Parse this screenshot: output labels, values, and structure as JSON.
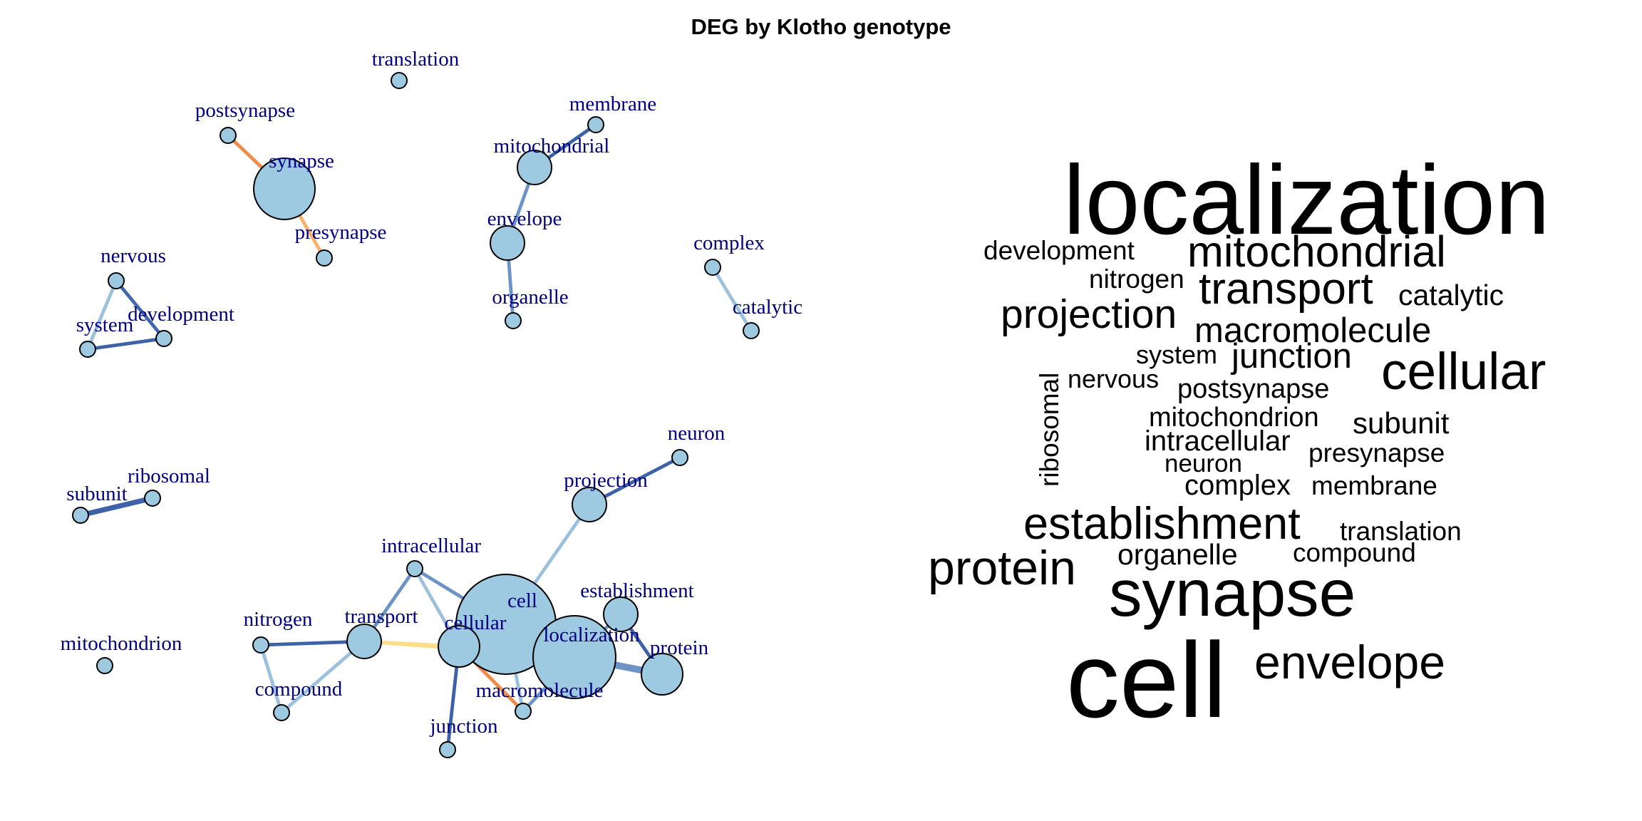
{
  "title": "DEG by Klotho genotype",
  "colors": {
    "node_fill": "#9ecae1",
    "node_stroke": "#000000",
    "label": "#000080",
    "wordcloud_text": "#000000"
  },
  "network": {
    "nodes": [
      {
        "id": "translation",
        "label": "translation",
        "size": 1
      },
      {
        "id": "postsynapse",
        "label": "postsynapse",
        "size": 1
      },
      {
        "id": "synapse",
        "label": "synapse",
        "size": 5
      },
      {
        "id": "presynapse",
        "label": "presynapse",
        "size": 1
      },
      {
        "id": "membrane",
        "label": "membrane",
        "size": 1
      },
      {
        "id": "mitochondrial",
        "label": "mitochondrial",
        "size": 2
      },
      {
        "id": "envelope",
        "label": "envelope",
        "size": 2
      },
      {
        "id": "organelle",
        "label": "organelle",
        "size": 1
      },
      {
        "id": "complex",
        "label": "complex",
        "size": 1
      },
      {
        "id": "catalytic",
        "label": "catalytic",
        "size": 1
      },
      {
        "id": "nervous",
        "label": "nervous",
        "size": 1
      },
      {
        "id": "system",
        "label": "system",
        "size": 1
      },
      {
        "id": "development",
        "label": "development",
        "size": 1
      },
      {
        "id": "subunit",
        "label": "subunit",
        "size": 1
      },
      {
        "id": "ribosomal",
        "label": "ribosomal",
        "size": 1
      },
      {
        "id": "mitochondrion",
        "label": "mitochondrion",
        "size": 1
      },
      {
        "id": "neuron",
        "label": "neuron",
        "size": 1
      },
      {
        "id": "projection",
        "label": "projection",
        "size": 2
      },
      {
        "id": "intracellular",
        "label": "intracellular",
        "size": 1
      },
      {
        "id": "cell",
        "label": "cell",
        "size": 8
      },
      {
        "id": "cellular",
        "label": "cellular",
        "size": 3
      },
      {
        "id": "establishment",
        "label": "establishment",
        "size": 2
      },
      {
        "id": "localization",
        "label": "localization",
        "size": 7
      },
      {
        "id": "protein",
        "label": "protein",
        "size": 3
      },
      {
        "id": "nitrogen",
        "label": "nitrogen",
        "size": 1
      },
      {
        "id": "transport",
        "label": "transport",
        "size": 2
      },
      {
        "id": "compound",
        "label": "compound",
        "size": 1
      },
      {
        "id": "macromolecule",
        "label": "macromolecule",
        "size": 1
      },
      {
        "id": "junction",
        "label": "junction",
        "size": 1
      }
    ],
    "edges": [
      {
        "source": "postsynapse",
        "target": "synapse",
        "color": "#f08a4b",
        "weight": 2
      },
      {
        "source": "synapse",
        "target": "presynapse",
        "color": "#f6b26b",
        "weight": 2
      },
      {
        "source": "membrane",
        "target": "mitochondrial",
        "color": "#3d62a8",
        "weight": 2
      },
      {
        "source": "mitochondrial",
        "target": "envelope",
        "color": "#6b93c6",
        "weight": 2
      },
      {
        "source": "envelope",
        "target": "organelle",
        "color": "#6b93c6",
        "weight": 2
      },
      {
        "source": "complex",
        "target": "catalytic",
        "color": "#9cc1dd",
        "weight": 2
      },
      {
        "source": "nervous",
        "target": "system",
        "color": "#9cc1dd",
        "weight": 2
      },
      {
        "source": "nervous",
        "target": "development",
        "color": "#4167ae",
        "weight": 2
      },
      {
        "source": "system",
        "target": "development",
        "color": "#3d62a8",
        "weight": 2
      },
      {
        "source": "subunit",
        "target": "ribosomal",
        "color": "#3d62a8",
        "weight": 3
      },
      {
        "source": "neuron",
        "target": "projection",
        "color": "#3d62a8",
        "weight": 2
      },
      {
        "source": "projection",
        "target": "cell",
        "color": "#9cc1dd",
        "weight": 2
      },
      {
        "source": "intracellular",
        "target": "cell",
        "color": "#6b93c6",
        "weight": 2
      },
      {
        "source": "intracellular",
        "target": "cellular",
        "color": "#9cc1dd",
        "weight": 2
      },
      {
        "source": "intracellular",
        "target": "transport",
        "color": "#6b93c6",
        "weight": 2
      },
      {
        "source": "nitrogen",
        "target": "transport",
        "color": "#3d62a8",
        "weight": 2
      },
      {
        "source": "nitrogen",
        "target": "compound",
        "color": "#9cc1dd",
        "weight": 2
      },
      {
        "source": "compound",
        "target": "transport",
        "color": "#9cc1dd",
        "weight": 2
      },
      {
        "source": "transport",
        "target": "cellular",
        "color": "#fddc8a",
        "weight": 2
      },
      {
        "source": "transport",
        "target": "localization",
        "color": "#fddc8a",
        "weight": 2
      },
      {
        "source": "cell",
        "target": "cellular",
        "color": "#6b93c6",
        "weight": 2
      },
      {
        "source": "cell",
        "target": "localization",
        "color": "#6b93c6",
        "weight": 2
      },
      {
        "source": "cellular",
        "target": "localization",
        "color": "#6b93c6",
        "weight": 2
      },
      {
        "source": "establishment",
        "target": "localization",
        "color": "#6b93c6",
        "weight": 2
      },
      {
        "source": "establishment",
        "target": "protein",
        "color": "#3d62a8",
        "weight": 2
      },
      {
        "source": "localization",
        "target": "protein",
        "color": "#6b93c6",
        "weight": 4
      },
      {
        "source": "cellular",
        "target": "macromolecule",
        "color": "#f08a4b",
        "weight": 2
      },
      {
        "source": "localization",
        "target": "macromolecule",
        "color": "#6b93c6",
        "weight": 2
      },
      {
        "source": "cell",
        "target": "macromolecule",
        "color": "#9cc1dd",
        "weight": 2
      },
      {
        "source": "cellular",
        "target": "junction",
        "color": "#3d62a8",
        "weight": 2
      }
    ]
  },
  "wordcloud": {
    "words": [
      {
        "text": "localization",
        "weight": 10,
        "vertical": false
      },
      {
        "text": "development",
        "weight": 3,
        "vertical": false
      },
      {
        "text": "mitochondrial",
        "weight": 5,
        "vertical": false
      },
      {
        "text": "nitrogen",
        "weight": 3,
        "vertical": false
      },
      {
        "text": "transport",
        "weight": 5.5,
        "vertical": false
      },
      {
        "text": "catalytic",
        "weight": 3,
        "vertical": false
      },
      {
        "text": "projection",
        "weight": 5,
        "vertical": false
      },
      {
        "text": "macromolecule",
        "weight": 4,
        "vertical": false
      },
      {
        "text": "system",
        "weight": 3,
        "vertical": false
      },
      {
        "text": "junction",
        "weight": 4,
        "vertical": false
      },
      {
        "text": "cellular",
        "weight": 6,
        "vertical": false
      },
      {
        "text": "ribosomal",
        "weight": 3,
        "vertical": true
      },
      {
        "text": "nervous",
        "weight": 3,
        "vertical": false
      },
      {
        "text": "postsynapse",
        "weight": 3,
        "vertical": false
      },
      {
        "text": "mitochondrion",
        "weight": 3,
        "vertical": false
      },
      {
        "text": "subunit",
        "weight": 3.5,
        "vertical": false
      },
      {
        "text": "intracellular",
        "weight": 3.5,
        "vertical": false
      },
      {
        "text": "neuron",
        "weight": 3,
        "vertical": false
      },
      {
        "text": "presynapse",
        "weight": 3,
        "vertical": false
      },
      {
        "text": "complex",
        "weight": 3.5,
        "vertical": false
      },
      {
        "text": "membrane",
        "weight": 3,
        "vertical": false
      },
      {
        "text": "establishment",
        "weight": 5.5,
        "vertical": false
      },
      {
        "text": "translation",
        "weight": 3,
        "vertical": false
      },
      {
        "text": "protein",
        "weight": 6,
        "vertical": false
      },
      {
        "text": "organelle",
        "weight": 3.5,
        "vertical": false
      },
      {
        "text": "compound",
        "weight": 3,
        "vertical": false
      },
      {
        "text": "synapse",
        "weight": 8,
        "vertical": false
      },
      {
        "text": "cell",
        "weight": 12,
        "vertical": false
      },
      {
        "text": "envelope",
        "weight": 5.5,
        "vertical": false
      }
    ]
  }
}
